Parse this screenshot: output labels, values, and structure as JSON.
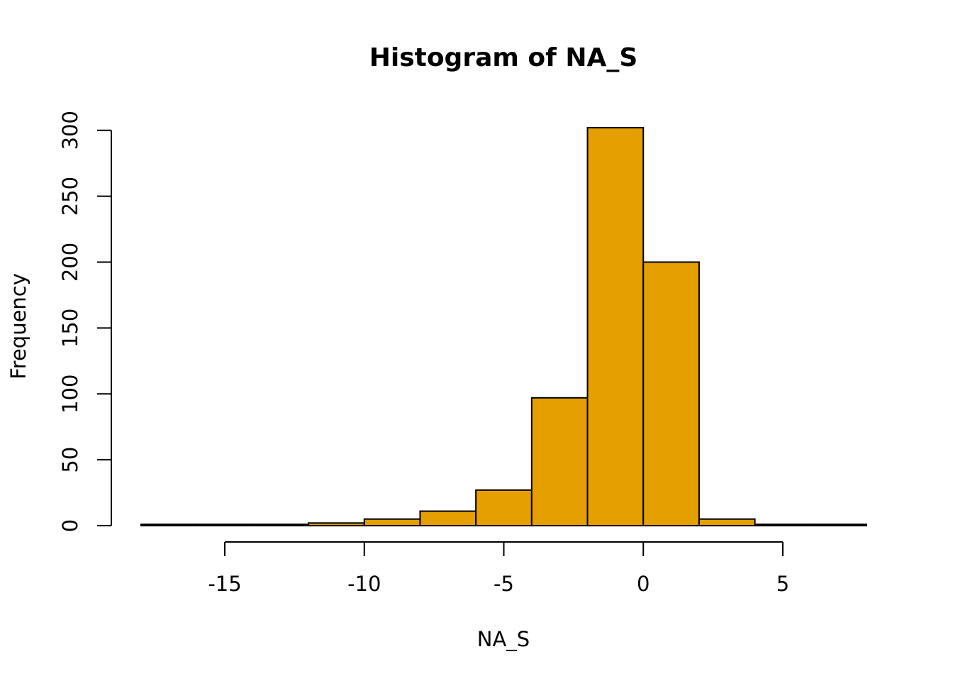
{
  "chart_data": {
    "type": "bar",
    "title": "Histogram of NA_S",
    "xlabel": "NA_S",
    "ylabel": "Frequency",
    "bin_edges": [
      -18,
      -16,
      -14,
      -12,
      -10,
      -8,
      -6,
      -4,
      -2,
      0,
      2,
      4,
      6,
      8
    ],
    "values": [
      1,
      1,
      1,
      2,
      5,
      11,
      27,
      97,
      302,
      200,
      5,
      1,
      1
    ],
    "xlim": [
      -18,
      8
    ],
    "ylim": [
      0,
      302
    ],
    "x_ticks": [
      -15,
      -10,
      -5,
      0,
      5
    ],
    "x_tick_labels": [
      "-15",
      "-10",
      "-5",
      "0",
      "5"
    ],
    "y_ticks": [
      0,
      50,
      100,
      150,
      200,
      250,
      300
    ],
    "y_tick_labels": [
      "0",
      "50",
      "100",
      "150",
      "200",
      "250",
      "300"
    ],
    "bar_color": "#E69F00",
    "grid": false,
    "legend": "none"
  }
}
